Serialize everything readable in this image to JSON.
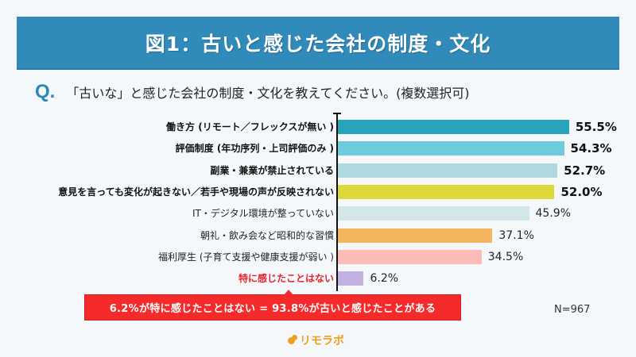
{
  "header": {
    "title": "図1：古いと感じた会社の制度・文化"
  },
  "question": {
    "mark": "Q.",
    "text": "「古いな」と感じた会社の制度・文化を教えてください。(複数選択可)"
  },
  "rows": [
    {
      "label": "働き方 (リモート／フレックスが無い )",
      "value": 55.5,
      "value_label": "55.5%",
      "color": "#27a3bb",
      "style": "bold"
    },
    {
      "label": "評価制度 (年功序列・上司評価のみ )",
      "value": 54.3,
      "value_label": "54.3%",
      "color": "#6ecbdb",
      "style": "bold"
    },
    {
      "label": "副業・兼業が禁止されている",
      "value": 52.7,
      "value_label": "52.7%",
      "color": "#b0d8df",
      "style": "bold"
    },
    {
      "label": "意見を言っても変化が起きない／若手や現場の声が反映されない",
      "value": 52.0,
      "value_label": "52.0%",
      "color": "#dcd83a",
      "style": "bold"
    },
    {
      "label": "IT・デジタル環境が整っていない",
      "value": 45.9,
      "value_label": "45.9%",
      "color": "#d3e6ea",
      "style": "normal"
    },
    {
      "label": "朝礼・飲み会など昭和的な習慣",
      "value": 37.1,
      "value_label": "37.1%",
      "color": "#f3b65c",
      "style": "normal"
    },
    {
      "label": "福利厚生 (子育て支援や健康支援が弱い )",
      "value": 34.5,
      "value_label": "34.5%",
      "color": "#fdbbb8",
      "style": "normal"
    },
    {
      "label": "特に感じたことはない",
      "value": 6.2,
      "value_label": "6.2%",
      "color": "#c3b1e1",
      "style": "red"
    }
  ],
  "callout": {
    "text": "6.2%が特に感じたことはない = 93.8%が古いと感じたことがある",
    "color": "#f52a2a"
  },
  "sample_size": "N=967",
  "logo": {
    "text": "リモラボ",
    "color": "#f0a020"
  },
  "chart_data": {
    "type": "bar",
    "orientation": "horizontal",
    "title": "図1：古いと感じた会社の制度・文化",
    "subtitle": "Q.「古いな」と感じた会社の制度・文化を教えてください。(複数選択可)",
    "categories": [
      "働き方 (リモート／フレックスが無い )",
      "評価制度 (年功序列・上司評価のみ )",
      "副業・兼業が禁止されている",
      "意見を言っても変化が起きない／若手や現場の声が反映されない",
      "IT・デジタル環境が整っていない",
      "朝礼・飲み会など昭和的な習慣",
      "福利厚生 (子育て支援や健康支援が弱い )",
      "特に感じたことはない"
    ],
    "values": [
      55.5,
      54.3,
      52.7,
      52.0,
      45.9,
      37.1,
      34.5,
      6.2
    ],
    "unit": "%",
    "xlabel": "",
    "ylabel": "",
    "grid": false,
    "legend": null,
    "annotations": [
      "6.2%が特に感じたことはない = 93.8%が古いと感じたことがある",
      "N=967"
    ]
  }
}
